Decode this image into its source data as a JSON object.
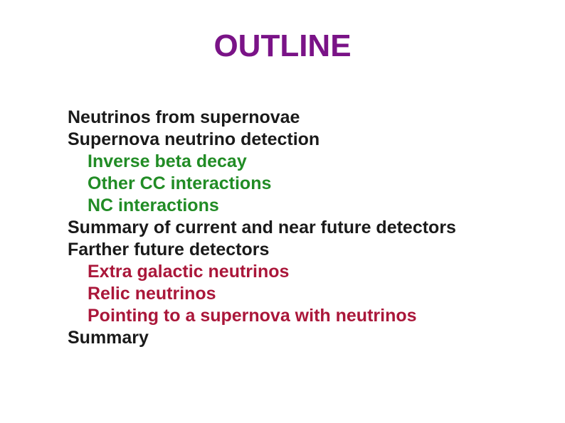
{
  "title": "OUTLINE",
  "colors": {
    "title": "#7a1387",
    "dark": "#1a1a1a",
    "green": "#218c25",
    "red": "#aa173a",
    "background": "#ffffff"
  },
  "typography": {
    "title_fontsize": 44,
    "body_fontsize": 25,
    "font_family": "Arial",
    "font_weight": "bold"
  },
  "lines": [
    {
      "text": "Neutrinos from supernovae",
      "indent": 0,
      "color": "dark"
    },
    {
      "text": "Supernova neutrino detection",
      "indent": 0,
      "color": "dark"
    },
    {
      "text": "Inverse beta decay",
      "indent": 1,
      "color": "green"
    },
    {
      "text": "Other CC interactions",
      "indent": 1,
      "color": "green"
    },
    {
      "text": "NC interactions",
      "indent": 1,
      "color": "green"
    },
    {
      "text": "Summary of current and near future detectors",
      "indent": 0,
      "color": "dark"
    },
    {
      "text": "Farther future detectors",
      "indent": 0,
      "color": "dark"
    },
    {
      "text": "Extra galactic neutrinos",
      "indent": 1,
      "color": "red"
    },
    {
      "text": "Relic neutrinos",
      "indent": 1,
      "color": "red"
    },
    {
      "text": "Pointing to a supernova with neutrinos",
      "indent": 1,
      "color": "red"
    },
    {
      "text": "Summary",
      "indent": 0,
      "color": "dark"
    }
  ]
}
